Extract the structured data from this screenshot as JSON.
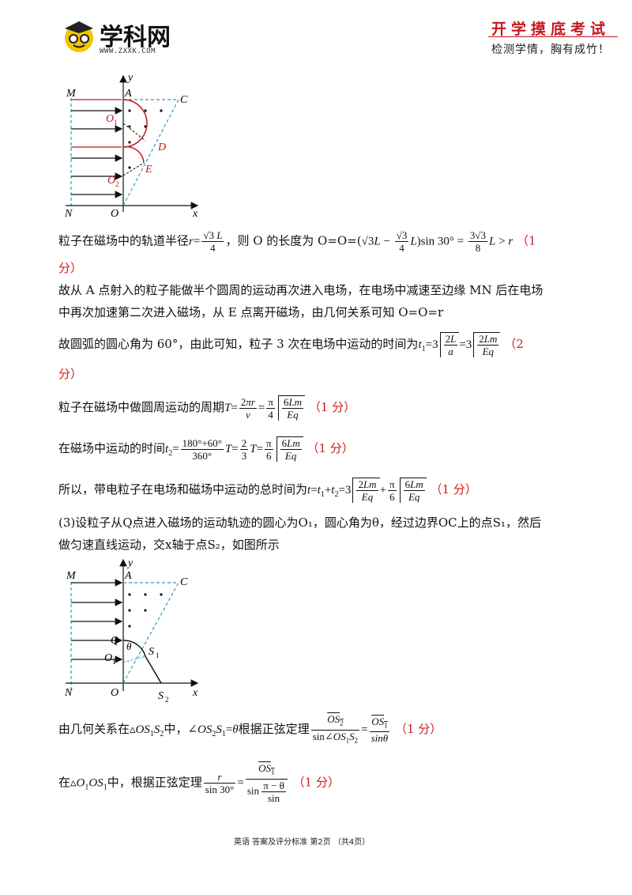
{
  "header": {
    "logo_text": "学科网",
    "logo_url": "WWW.ZXXK.COM",
    "slogan_main": "开学摸底考试",
    "slogan_sub": "检测学情，胸有成竹！"
  },
  "figure1": {
    "labels": {
      "M": "M",
      "A": "A",
      "C": "C",
      "O1": "O",
      "O1sub": "1",
      "D": "D",
      "E": "E",
      "O2": "O",
      "O2sub": "2",
      "N": "N",
      "O": "O",
      "x": "x",
      "y": "y"
    }
  },
  "figure2": {
    "labels": {
      "M": "M",
      "A": "A",
      "C": "C",
      "Q": "Q",
      "theta": "θ",
      "S1": "S",
      "S1sub": "1",
      "O1": "O",
      "O1sub": "1",
      "N": "N",
      "O": "O",
      "S2": "S",
      "S2sub": "2",
      "x": "x",
      "y": "y"
    }
  },
  "text": {
    "l1_pre": "粒子在磁场中的轨道半径",
    "l1_mid": "，则 O 的长度为 O=O=(",
    "l1_score": "（1",
    "l2": "分）",
    "l3": "故从 A 点射入的粒子能做半个圆周的运动再次进入电场，在电场中减速至边缘 MN 后在电场",
    "l4": "中再次加速第二次进入磁场，从 E 点离开磁场，由几何关系可知 O=O=r",
    "l5_pre": "故圆弧的圆心角为 60°，由此可知，粒子 3 次在电场中运动的时间为",
    "l5_score": "（2",
    "l6": "分）",
    "l7_pre": "粒子在磁场中做圆周运动的周期",
    "l7_score": "（1 分）",
    "l8_pre": "在磁场中运动的时间",
    "l8_score": "（1 分）",
    "l9_pre": "所以，带电粒子在电场和磁场中运动的总时间为",
    "l9_score": "（1 分）",
    "l10": "(3)设粒子从Q点进入磁场的运动轨迹的圆心为O₁，圆心角为θ，经过边界OC上的点S₁，然后",
    "l11": "做匀速直线运动，交x轴于点S₂，如图所示",
    "l12_pre": "由几何关系在",
    "l12_mid": "中，",
    "l12_mid2": "根据正弦定理",
    "l12_score": "（1 分）",
    "l13_pre": "在",
    "l13_mid": "中，根据正弦定理",
    "l13_score": "（1 分）"
  },
  "footer": {
    "text": "英语  答案及评分标准   第2页 （共4页）"
  }
}
